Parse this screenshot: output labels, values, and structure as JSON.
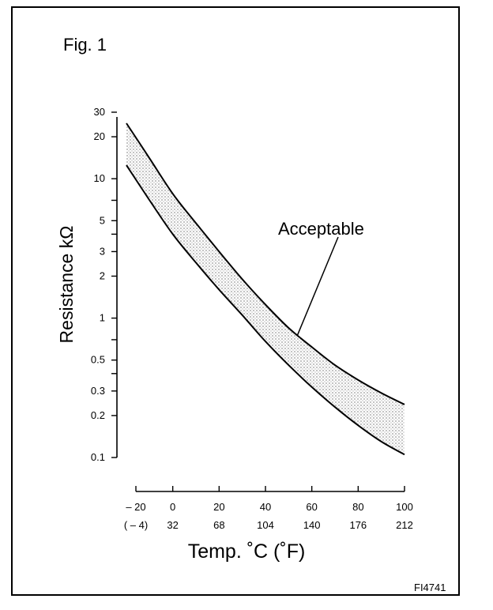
{
  "figure": {
    "title": "Fig. 1",
    "code": "FI4741"
  },
  "chart_data": {
    "type": "line",
    "ylabel": "Resistance kΩ",
    "xlabel": "Temp. ˚C (˚F)",
    "yscale": "log",
    "ylim": [
      0.1,
      30
    ],
    "xlim": [
      -20,
      100
    ],
    "y_ticks": [
      {
        "value": 30,
        "label": "30"
      },
      {
        "value": 20,
        "label": "20"
      },
      {
        "value": 10,
        "label": "10"
      },
      {
        "value": 5,
        "label": "5"
      },
      {
        "value": 3,
        "label": "3"
      },
      {
        "value": 2,
        "label": "2"
      },
      {
        "value": 1,
        "label": "1"
      },
      {
        "value": 0.5,
        "label": "0.5"
      },
      {
        "value": 0.3,
        "label": "0.3"
      },
      {
        "value": 0.2,
        "label": "0.2"
      },
      {
        "value": 0.1,
        "label": "0.1"
      }
    ],
    "y_minor_ticks": [
      7,
      4,
      0.7,
      0.4
    ],
    "x_ticks": [
      {
        "value": -20,
        "label": "– 20",
        "label_f": "( – 4)"
      },
      {
        "value": 0,
        "label": "0",
        "label_f": "32"
      },
      {
        "value": 20,
        "label": "20",
        "label_f": "68"
      },
      {
        "value": 40,
        "label": "40",
        "label_f": "104"
      },
      {
        "value": 60,
        "label": "60",
        "label_f": "140"
      },
      {
        "value": 80,
        "label": "80",
        "label_f": "176"
      },
      {
        "value": 100,
        "label": "100",
        "label_f": "212"
      }
    ],
    "series": [
      {
        "x": [
          -20,
          -10,
          0,
          10,
          20,
          30,
          40,
          50,
          60,
          70,
          80,
          90,
          100
        ],
        "values": [
          25,
          14,
          7.8,
          4.8,
          3.0,
          1.9,
          1.25,
          0.85,
          0.62,
          0.46,
          0.36,
          0.29,
          0.24
        ]
      },
      {
        "x": [
          -20,
          -10,
          0,
          10,
          20,
          30,
          40,
          50,
          60,
          70,
          80,
          90,
          100
        ],
        "values": [
          12.5,
          7.0,
          4.0,
          2.5,
          1.6,
          1.05,
          0.68,
          0.46,
          0.32,
          0.23,
          0.17,
          0.13,
          0.105
        ]
      }
    ],
    "band": {
      "label": "Acceptable",
      "color": "#c8c8c8"
    },
    "annotation": {
      "text": "Acceptable",
      "target_x": 53
    }
  }
}
